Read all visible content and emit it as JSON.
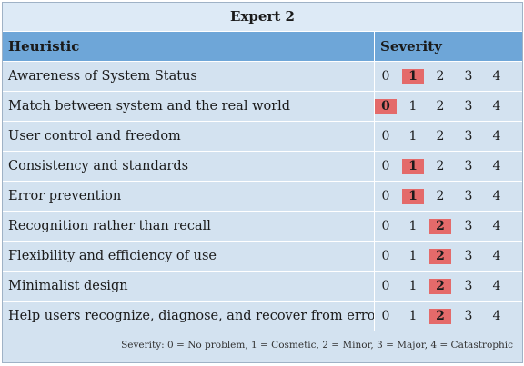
{
  "title": "Expert 2",
  "columns": {
    "heuristic": "Heuristic",
    "severity": "Severity"
  },
  "scale": [
    "0",
    "1",
    "2",
    "3",
    "4"
  ],
  "rows": [
    {
      "heuristic": "Awareness of System Status",
      "selected": 1
    },
    {
      "heuristic": "Match between system and the real world",
      "selected": 0
    },
    {
      "heuristic": "User control and freedom",
      "selected": null
    },
    {
      "heuristic": "Consistency and standards",
      "selected": 1
    },
    {
      "heuristic": "Error prevention",
      "selected": 1
    },
    {
      "heuristic": "Recognition rather than recall",
      "selected": 2
    },
    {
      "heuristic": "Flexibility and efficiency of use",
      "selected": 2
    },
    {
      "heuristic": "Minimalist design",
      "selected": 2
    },
    {
      "heuristic": "Help users recognize, diagnose, and recover from errors",
      "selected": 2
    }
  ],
  "legend": "Severity: 0 = No problem, 1 = Cosmetic, 2 = Minor, 3 = Major, 4 = Catastrophic",
  "colors": {
    "header": "#6ea6d8",
    "row": "#d3e2f0",
    "highlight": "#e46a6a"
  }
}
